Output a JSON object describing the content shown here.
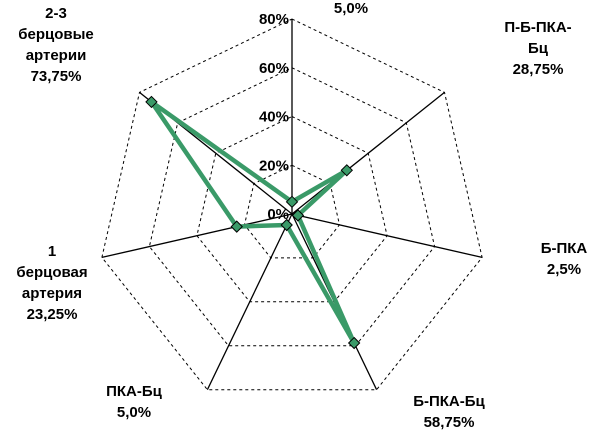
{
  "chart_data": {
    "type": "radar",
    "title": "",
    "rlim": [
      0,
      80
    ],
    "ticks": [
      "0%",
      "20%",
      "40%",
      "60%",
      "80%"
    ],
    "tick_values": [
      0,
      20,
      40,
      60,
      80
    ],
    "grid": true,
    "categories": [
      {
        "lines": [
          ""
        ],
        "value_label": "5,0%"
      },
      {
        "lines": [
          "П-Б-ПКА-",
          "Бц"
        ],
        "value_label": "28,75%"
      },
      {
        "lines": [
          "Б-ПКА"
        ],
        "value_label": "2,5%"
      },
      {
        "lines": [
          "Б-ПКА-Бц"
        ],
        "value_label": "58,75%"
      },
      {
        "lines": [
          "ПКА-Бц"
        ],
        "value_label": "5,0%"
      },
      {
        "lines": [
          "1",
          "берцовая",
          "артерия"
        ],
        "value_label": "23,25%"
      },
      {
        "lines": [
          "2-3",
          "берцовые",
          "артерии"
        ],
        "value_label": "73,75%"
      }
    ],
    "series": [
      {
        "values": [
          5.0,
          28.75,
          2.5,
          58.75,
          5.0,
          23.25,
          73.75
        ],
        "color": "#3a9a68"
      }
    ]
  }
}
